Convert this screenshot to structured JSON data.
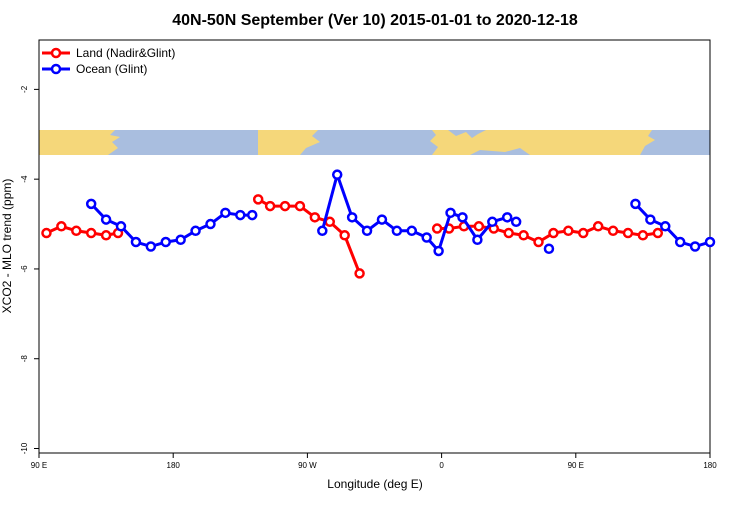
{
  "chart_data": {
    "type": "line",
    "title": "40N-50N September (Ver 10)   2015-01-01 to 2020-12-18",
    "xlabel": "Longitude (deg E)",
    "ylabel": "XCO2 - MLO trend (ppm)",
    "xlim": [
      90,
      540
    ],
    "ylim": [
      -10.1,
      -0.9
    ],
    "x_ticks": [
      {
        "value": 90,
        "label": "90 E"
      },
      {
        "value": 180,
        "label": "180"
      },
      {
        "value": 270,
        "label": "90 W"
      },
      {
        "value": 360,
        "label": "0"
      },
      {
        "value": 450,
        "label": "90 E"
      },
      {
        "value": 540,
        "label": "180"
      }
    ],
    "y_ticks": [
      -10,
      -8,
      -6,
      -4,
      -2
    ],
    "legend_position": "top-left",
    "grid": false,
    "series": [
      {
        "name": "Land (Nadir&Glint)",
        "color": "#ff0000",
        "segments": [
          [
            [
              95,
              -5.2
            ],
            [
              105,
              -5.05
            ],
            [
              115,
              -5.15
            ],
            [
              125,
              -5.2
            ],
            [
              135,
              -5.25
            ],
            [
              143,
              -5.2
            ]
          ],
          [
            [
              237,
              -4.45
            ],
            [
              245,
              -4.6
            ],
            [
              255,
              -4.6
            ],
            [
              265,
              -4.6
            ],
            [
              275,
              -4.85
            ],
            [
              285,
              -4.95
            ],
            [
              295,
              -5.25
            ],
            [
              305,
              -6.1
            ]
          ],
          [
            [
              357,
              -5.1
            ],
            [
              365,
              -5.1
            ],
            [
              375,
              -5.05
            ],
            [
              385,
              -5.05
            ],
            [
              395,
              -5.1
            ],
            [
              405,
              -5.2
            ],
            [
              415,
              -5.25
            ],
            [
              425,
              -5.4
            ],
            [
              435,
              -5.2
            ],
            [
              445,
              -5.15
            ],
            [
              455,
              -5.2
            ],
            [
              465,
              -5.05
            ],
            [
              475,
              -5.15
            ],
            [
              485,
              -5.2
            ],
            [
              495,
              -5.25
            ],
            [
              505,
              -5.2
            ]
          ]
        ]
      },
      {
        "name": "Ocean (Glint)",
        "color": "#0000ff",
        "segments": [
          [
            [
              125,
              -4.55
            ],
            [
              135,
              -4.9
            ],
            [
              145,
              -5.05
            ],
            [
              155,
              -5.4
            ],
            [
              165,
              -5.5
            ],
            [
              175,
              -5.4
            ],
            [
              185,
              -5.35
            ],
            [
              195,
              -5.15
            ],
            [
              205,
              -5.0
            ],
            [
              215,
              -4.75
            ],
            [
              225,
              -4.8
            ],
            [
              233,
              -4.8
            ]
          ],
          [
            [
              280,
              -5.15
            ],
            [
              290,
              -3.9
            ],
            [
              300,
              -4.85
            ],
            [
              310,
              -5.15
            ],
            [
              320,
              -4.9
            ],
            [
              330,
              -5.15
            ],
            [
              340,
              -5.15
            ],
            [
              350,
              -5.3
            ],
            [
              358,
              -5.6
            ],
            [
              366,
              -4.75
            ],
            [
              374,
              -4.85
            ],
            [
              384,
              -5.35
            ],
            [
              394,
              -4.95
            ],
            [
              404,
              -4.85
            ],
            [
              410,
              -4.95
            ]
          ],
          [
            [
              432,
              -5.55
            ]
          ],
          [
            [
              490,
              -4.55
            ],
            [
              500,
              -4.9
            ],
            [
              510,
              -5.05
            ],
            [
              520,
              -5.4
            ],
            [
              530,
              -5.5
            ],
            [
              540,
              -5.4
            ]
          ]
        ]
      }
    ]
  }
}
